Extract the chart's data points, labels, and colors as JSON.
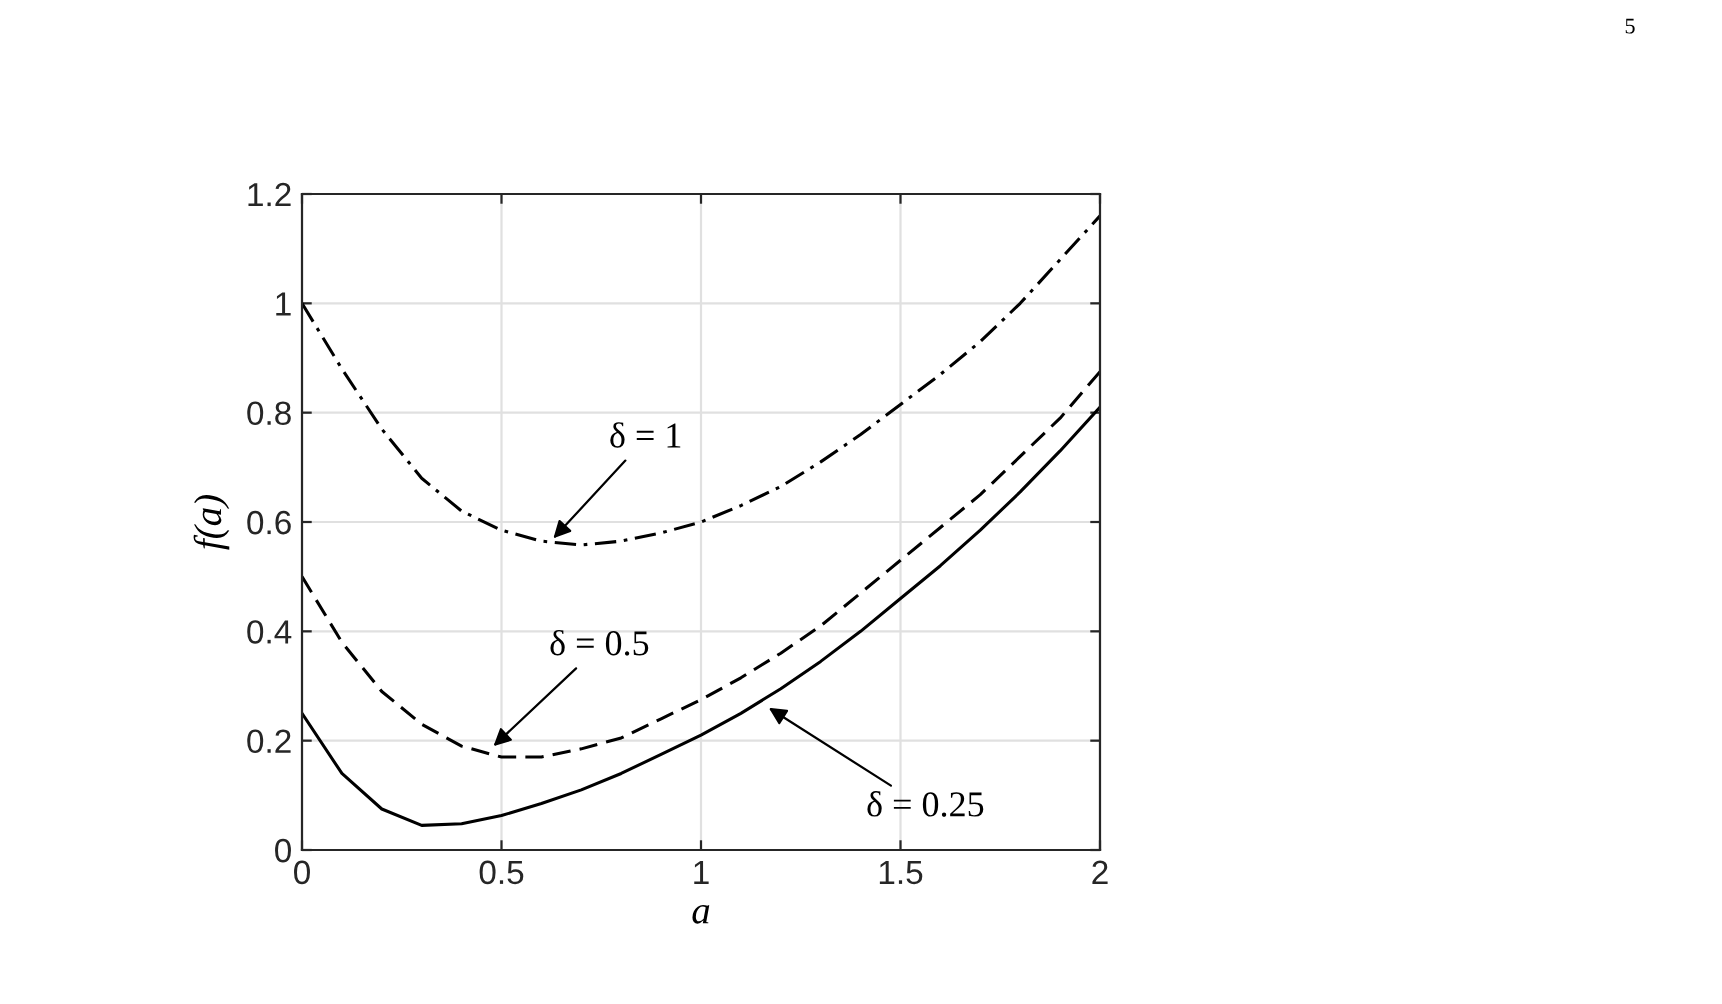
{
  "chart_data": {
    "type": "line",
    "xlabel": "a",
    "ylabel": "f(a)",
    "x": [
      0,
      0.1,
      0.2,
      0.3,
      0.4,
      0.5,
      0.6,
      0.7,
      0.8,
      0.9,
      1.0,
      1.1,
      1.2,
      1.3,
      1.4,
      1.5,
      1.6,
      1.7,
      1.8,
      1.9,
      2.0
    ],
    "series": [
      {
        "color": "#000000",
        "line_style": "dashdot",
        "values": [
          1.0,
          0.88,
          0.77,
          0.68,
          0.62,
          0.585,
          0.565,
          0.558,
          0.565,
          0.58,
          0.6,
          0.63,
          0.665,
          0.71,
          0.76,
          0.815,
          0.87,
          0.93,
          1.0,
          1.08,
          1.16
        ]
      },
      {
        "color": "#000000",
        "line_style": "dashed",
        "values": [
          0.5,
          0.38,
          0.29,
          0.23,
          0.19,
          0.17,
          0.17,
          0.185,
          0.205,
          0.24,
          0.275,
          0.315,
          0.36,
          0.41,
          0.47,
          0.53,
          0.59,
          0.65,
          0.72,
          0.79,
          0.875
        ]
      },
      {
        "color": "#000000",
        "line_style": "solid",
        "values": [
          0.25,
          0.14,
          0.075,
          0.045,
          0.048,
          0.063,
          0.085,
          0.11,
          0.14,
          0.175,
          0.21,
          0.25,
          0.295,
          0.345,
          0.4,
          0.46,
          0.52,
          0.585,
          0.655,
          0.73,
          0.81
        ]
      }
    ],
    "annotations": [
      {
        "text": "δ = 1",
        "x": 0.63,
        "y": 0.57
      },
      {
        "text": "δ = 0.5",
        "x": 0.48,
        "y": 0.19
      },
      {
        "text": "δ = 0.25",
        "x": 1.17,
        "y": 0.26
      },
      "5"
    ],
    "xlim": [
      0,
      2
    ],
    "xticks": [
      0,
      0.5,
      1,
      1.5,
      2
    ],
    "ylim": [
      0,
      1.2
    ],
    "yticks": [
      0,
      0.2,
      0.4,
      0.6,
      0.8,
      1,
      1.2
    ],
    "grid": true,
    "legend": false
  }
}
